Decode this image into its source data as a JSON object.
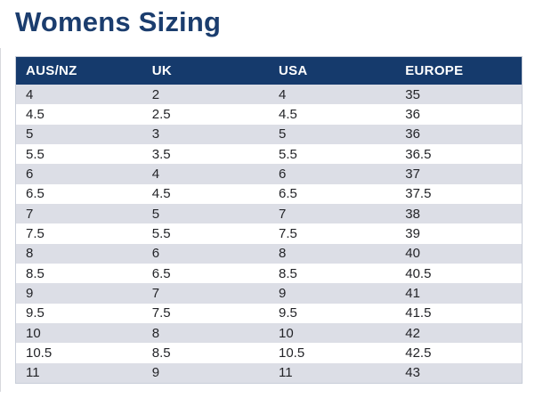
{
  "page": {
    "title": "Womens Sizing"
  },
  "colors": {
    "title_text": "#1b3d6e",
    "header_bg": "#153a6c",
    "header_text": "#ffffff",
    "row_stripe": "#dcdee6",
    "row_white": "#ffffff",
    "cell_text": "#232428",
    "table_border": "#c9ced9"
  },
  "sizing_table": {
    "columns": [
      "AUS/NZ",
      "UK",
      "USA",
      "EUROPE"
    ],
    "rows": [
      [
        "4",
        "2",
        "4",
        "35"
      ],
      [
        "4.5",
        "2.5",
        "4.5",
        "36"
      ],
      [
        "5",
        "3",
        "5",
        "36"
      ],
      [
        "5.5",
        "3.5",
        "5.5",
        "36.5"
      ],
      [
        "6",
        "4",
        "6",
        "37"
      ],
      [
        "6.5",
        "4.5",
        "6.5",
        "37.5"
      ],
      [
        "7",
        "5",
        "7",
        "38"
      ],
      [
        "7.5",
        "5.5",
        "7.5",
        "39"
      ],
      [
        "8",
        "6",
        "8",
        "40"
      ],
      [
        "8.5",
        "6.5",
        "8.5",
        "40.5"
      ],
      [
        "9",
        "7",
        "9",
        "41"
      ],
      [
        "9.5",
        "7.5",
        "9.5",
        "41.5"
      ],
      [
        "10",
        "8",
        "10",
        "42"
      ],
      [
        "10.5",
        "8.5",
        "10.5",
        "42.5"
      ],
      [
        "11",
        "9",
        "11",
        "43"
      ]
    ]
  }
}
